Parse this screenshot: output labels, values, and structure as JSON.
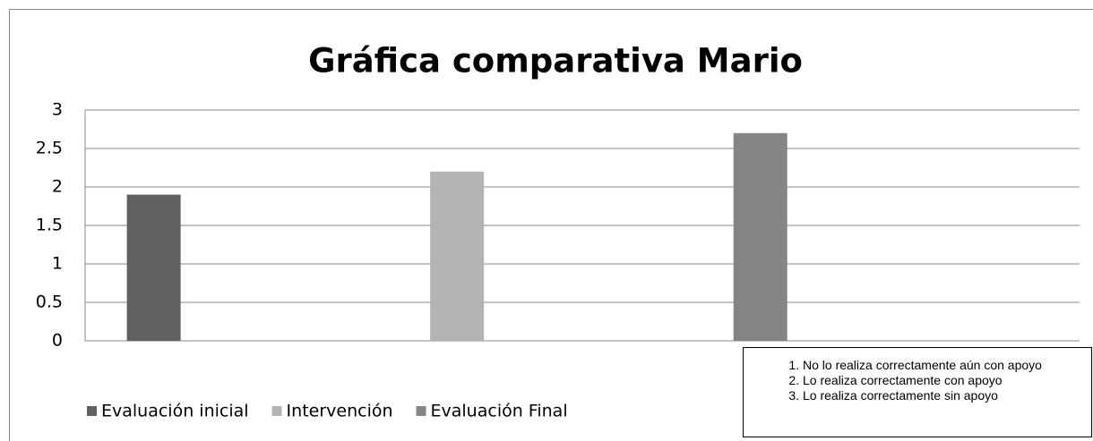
{
  "chart_data": {
    "type": "bar",
    "title": "Gráfica comparativa Mario",
    "categories": [
      null
    ],
    "series": [
      {
        "name": "Evaluación inicial",
        "color": "#606060",
        "values": [
          1.9
        ]
      },
      {
        "name": "Intervención",
        "color": "#b3b3b3",
        "values": [
          2.2
        ]
      },
      {
        "name": "Evaluación Final",
        "color": "#858585",
        "values": [
          2.7
        ]
      }
    ],
    "ylim": [
      0,
      3
    ],
    "yticks": [
      0,
      0.5,
      1,
      1.5,
      2,
      2.5,
      3
    ],
    "grid": true,
    "legend": "bottom",
    "note": [
      "No lo realiza correctamente aún con apoyo",
      "Lo realiza correctamente con apoyo",
      "Lo realiza correctamente sin apoyo"
    ]
  }
}
